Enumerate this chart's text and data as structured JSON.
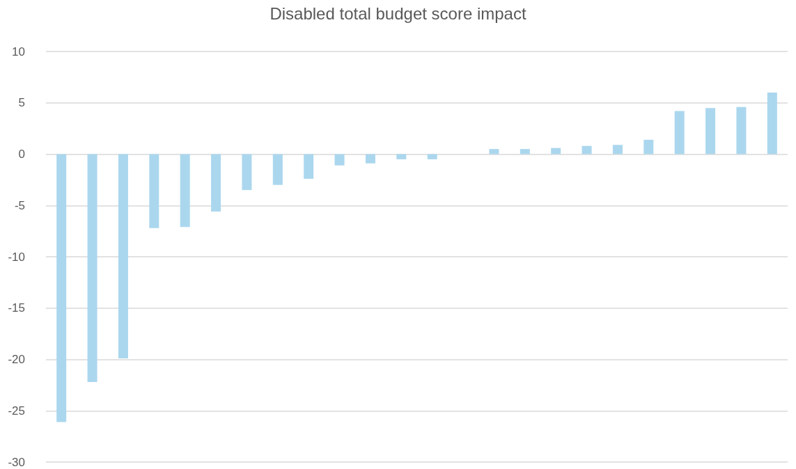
{
  "chart_data": {
    "type": "bar",
    "title": "Disabled total budget score impact",
    "categories": [
      null,
      null,
      null,
      null,
      null,
      null,
      null,
      null,
      null,
      null,
      null,
      null,
      null,
      null,
      null,
      null,
      null,
      null,
      null,
      null,
      null,
      null,
      null,
      null
    ],
    "values": [
      -26.1,
      -22.2,
      -19.9,
      -7.2,
      -7.1,
      -5.6,
      -3.5,
      -3,
      -2.4,
      -1.1,
      -0.9,
      -0.5,
      -0.5,
      0,
      0.5,
      0.5,
      0.6,
      0.8,
      0.9,
      1.4,
      4.2,
      4.5,
      4.6,
      6
    ],
    "color": "#abd7ee",
    "ylim": [
      -30,
      10
    ],
    "yticks": [
      -30,
      -25,
      -20,
      -15,
      -10,
      -5,
      0,
      5,
      10
    ],
    "grid": "y"
  }
}
